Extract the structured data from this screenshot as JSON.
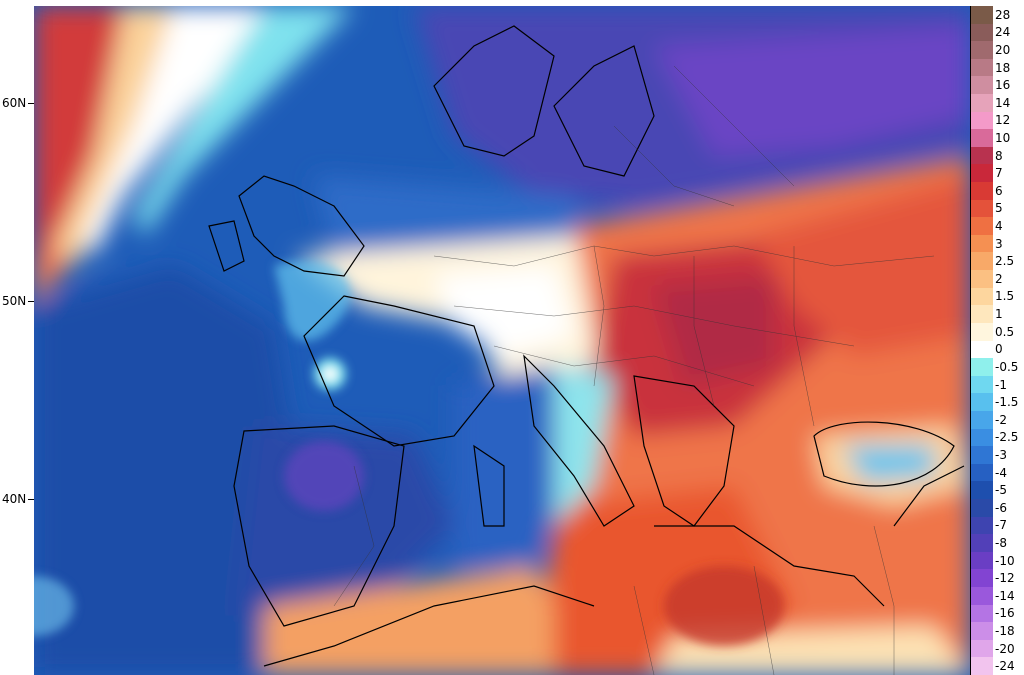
{
  "map": {
    "lat_labels": [
      "60N",
      "50N",
      "40N"
    ]
  },
  "colorbar": {
    "levels": [
      {
        "label": "28",
        "color": "#7a5a48"
      },
      {
        "label": "24",
        "color": "#8a5c5a"
      },
      {
        "label": "20",
        "color": "#a06a6e"
      },
      {
        "label": "18",
        "color": "#b87a86"
      },
      {
        "label": "16",
        "color": "#cf8ea0"
      },
      {
        "label": "14",
        "color": "#e6a3ba"
      },
      {
        "label": "12",
        "color": "#f49ac9"
      },
      {
        "label": "10",
        "color": "#d96a9a"
      },
      {
        "label": "8",
        "color": "#b8324f"
      },
      {
        "label": "7",
        "color": "#c9283a"
      },
      {
        "label": "6",
        "color": "#d93a34"
      },
      {
        "label": "5",
        "color": "#e4523a"
      },
      {
        "label": "4",
        "color": "#ef7042"
      },
      {
        "label": "3",
        "color": "#f59052"
      },
      {
        "label": "2.5",
        "color": "#f8a968"
      },
      {
        "label": "2",
        "color": "#fbc082"
      },
      {
        "label": "1.5",
        "color": "#fdd69e"
      },
      {
        "label": "1",
        "color": "#fee7bd"
      },
      {
        "label": "0.5",
        "color": "#fff6de"
      },
      {
        "label": "0",
        "color": "#ffffff"
      },
      {
        "label": "-0.5",
        "color": "#8ff0ec"
      },
      {
        "label": "-1",
        "color": "#6fd8f0"
      },
      {
        "label": "-1.5",
        "color": "#58c0ee"
      },
      {
        "label": "-2",
        "color": "#48a6ea"
      },
      {
        "label": "-2.5",
        "color": "#3a8ee2"
      },
      {
        "label": "-3",
        "color": "#2f76d4"
      },
      {
        "label": "-4",
        "color": "#2660c2"
      },
      {
        "label": "-5",
        "color": "#1e4fae"
      },
      {
        "label": "-6",
        "color": "#2a4aa8"
      },
      {
        "label": "-7",
        "color": "#3e44b0"
      },
      {
        "label": "-8",
        "color": "#5240b8"
      },
      {
        "label": "-10",
        "color": "#6a3ec4"
      },
      {
        "label": "-12",
        "color": "#8244d2"
      },
      {
        "label": "-14",
        "color": "#9a58dc"
      },
      {
        "label": "-16",
        "color": "#b474e4"
      },
      {
        "label": "-18",
        "color": "#cc8ee8"
      },
      {
        "label": "-20",
        "color": "#e0a6ea"
      },
      {
        "label": "-24",
        "color": "#f2c4ee"
      }
    ]
  }
}
